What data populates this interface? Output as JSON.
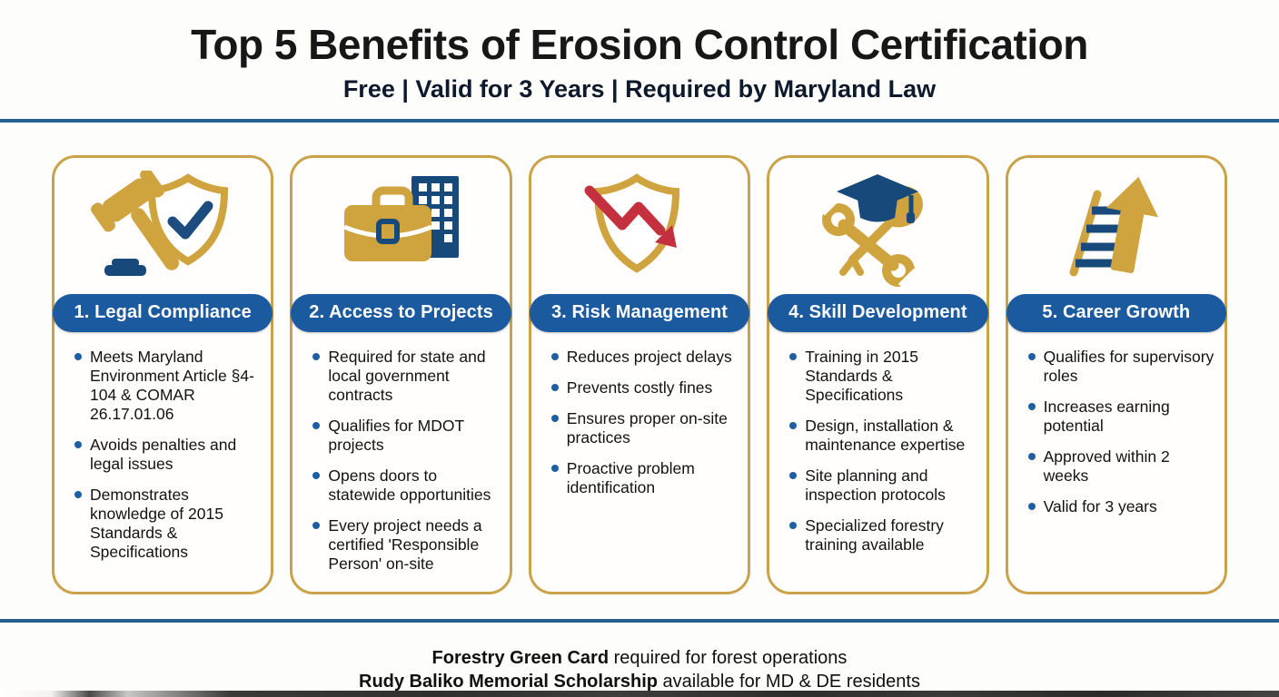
{
  "header": {
    "title": "Top 5 Benefits of Erosion Control Certification",
    "subtitle": "Free | Valid for 3 Years | Required by Maryland Law"
  },
  "cards": [
    {
      "title": "1. Legal Compliance",
      "icon": "gavel-shield-check-icon",
      "bullets": [
        "Meets Maryland Environment Article §4-104 & COMAR 26.17.01.06",
        "Avoids penalties and legal issues",
        "Demonstrates knowledge of 2015 Standards & Specifications"
      ]
    },
    {
      "title": "2. Access to Projects",
      "icon": "briefcase-building-icon",
      "bullets": [
        "Required for state and local government contracts",
        "Qualifies for MDOT projects",
        "Opens doors to statewide opportunities",
        "Every project needs a certified 'Responsible Person' on-site"
      ]
    },
    {
      "title": "3. Risk Management",
      "icon": "shield-declining-arrow-icon",
      "bullets": [
        "Reduces project delays",
        "Prevents costly fines",
        "Ensures proper on-site practices",
        "Proactive problem identification"
      ]
    },
    {
      "title": "4. Skill Development",
      "icon": "graduation-cap-tools-icon",
      "bullets": [
        "Training in 2015 Standards & Specifications",
        "Design, installation & maintenance expertise",
        "Site planning and inspection protocols",
        "Specialized forestry training available"
      ]
    },
    {
      "title": "5. Career Growth",
      "icon": "ladder-up-arrow-icon",
      "bullets": [
        "Qualifies for supervisory roles",
        "Increases earning potential",
        "Approved within 2 weeks",
        "Valid for 3 years"
      ]
    }
  ],
  "footer": {
    "line1_bold": "Forestry Green Card",
    "line1_rest": " required for forest operations",
    "line2_bold": "Rudy Baliko Memorial Scholarship",
    "line2_rest": " available for MD & DE residents"
  },
  "colors": {
    "accent_gold": "#C9A24A",
    "icon_gold": "#CFA33E",
    "primary_blue": "#1C5AA0",
    "icon_navy": "#17497B",
    "bullet_blue": "#1E5EA3",
    "divider_blue": "#26608F",
    "arrow_red": "#C4303E"
  }
}
